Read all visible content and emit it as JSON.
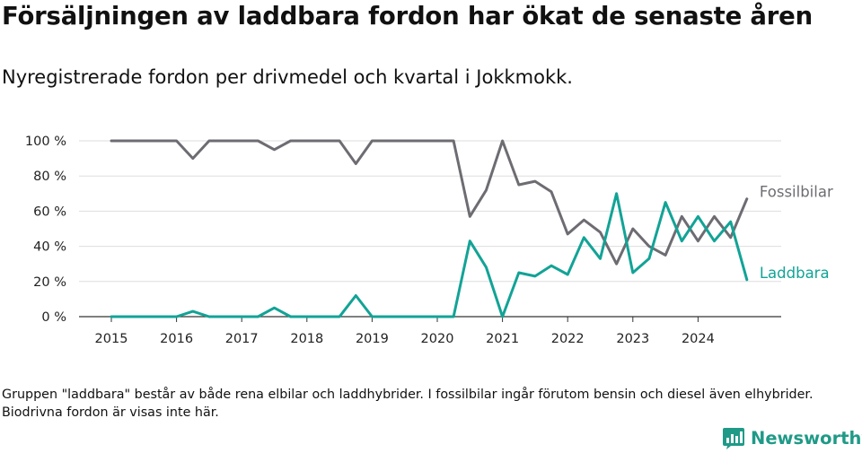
{
  "title": "Försäljningen av laddbara fordon har ökat de senaste åren",
  "subtitle": "Nyregistrerade fordon per drivmedel och kvartal i Jokkmokk.",
  "footnote": "Gruppen \"laddbara\" består av både rena elbilar och laddhybrider. I fossilbilar ingår förutom bensin och diesel även elhybrider. Biodrivna fordon är visas inte här.",
  "brand": {
    "name": "Newsworthy",
    "icon": "bar-chart-logo-icon",
    "color": "#1f9a87"
  },
  "chart_data": {
    "type": "line",
    "x_start": "2015 Q1",
    "x_step": "quarter",
    "xticks": [
      "2015",
      "2016",
      "2017",
      "2018",
      "2019",
      "2020",
      "2021",
      "2022",
      "2023",
      "2024"
    ],
    "yticks": [
      "0 %",
      "20 %",
      "40 %",
      "60 %",
      "80 %",
      "100 %"
    ],
    "ylim": [
      0,
      100
    ],
    "grid": true,
    "legend": "inline-right",
    "series": [
      {
        "name": "Fossilbilar",
        "color": "#6e6c72",
        "values": [
          100,
          100,
          100,
          100,
          100,
          90,
          100,
          100,
          100,
          100,
          95,
          100,
          100,
          100,
          100,
          87,
          100,
          100,
          100,
          100,
          100,
          100,
          57,
          72,
          100,
          75,
          77,
          71,
          47,
          55,
          48,
          30,
          50,
          40,
          35,
          57,
          43,
          57,
          45,
          67
        ]
      },
      {
        "name": "Laddbara",
        "color": "#12a396",
        "values": [
          0,
          0,
          0,
          0,
          0,
          3,
          0,
          0,
          0,
          0,
          5,
          0,
          0,
          0,
          0,
          12,
          0,
          0,
          0,
          0,
          0,
          0,
          43,
          28,
          0,
          25,
          23,
          29,
          24,
          45,
          33,
          70,
          25,
          33,
          65,
          43,
          57,
          43,
          54,
          21
        ]
      }
    ]
  }
}
